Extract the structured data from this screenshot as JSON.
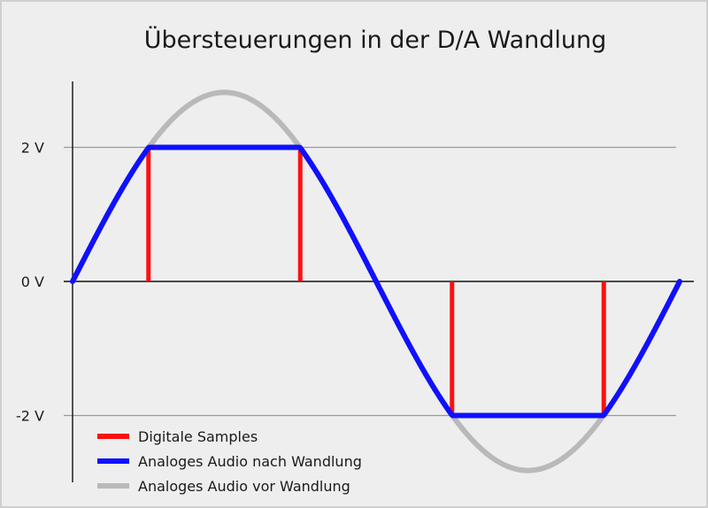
{
  "chart_data": {
    "type": "line",
    "title": "Übersteuerungen in der D/A Wandlung",
    "xlabel": "",
    "ylabel": "",
    "ylim": [
      -3.05,
      3.05
    ],
    "xlim": [
      0,
      360
    ],
    "y_ticks": [
      {
        "value": 2,
        "label": "2 V"
      },
      {
        "value": 0,
        "label": "0 V"
      },
      {
        "value": -2,
        "label": "-2 V"
      }
    ],
    "grid": "horizontal lines at 2 V and -2 V",
    "legend_position": "bottom-left",
    "series": [
      {
        "name": "Analoges Audio vor Wandlung",
        "color": "#b9b9b9",
        "amplitude": 2.82,
        "x": [
          0,
          15,
          30,
          45,
          60,
          75,
          90,
          105,
          120,
          135,
          150,
          165,
          180,
          195,
          210,
          225,
          240,
          255,
          270,
          285,
          300,
          315,
          330,
          345,
          360
        ],
        "y": [
          0,
          0.73,
          1.41,
          1.99,
          2.44,
          2.72,
          2.82,
          2.72,
          2.44,
          1.99,
          1.41,
          0.73,
          0,
          -0.73,
          -1.41,
          -1.99,
          -2.44,
          -2.72,
          -2.82,
          -2.72,
          -2.44,
          -1.99,
          -1.41,
          -0.73,
          0
        ]
      },
      {
        "name": "Analoges Audio nach Wandlung",
        "color": "#1010ff",
        "clip": 2,
        "x": [
          0,
          15,
          30,
          45,
          60,
          75,
          90,
          105,
          120,
          135,
          150,
          165,
          180,
          195,
          210,
          225,
          240,
          255,
          270,
          285,
          300,
          315,
          330,
          345,
          360
        ],
        "y": [
          0,
          0.73,
          1.41,
          1.99,
          2,
          2,
          2,
          2,
          2,
          1.99,
          1.41,
          0.73,
          0,
          -0.73,
          -1.41,
          -1.99,
          -2,
          -2,
          -2,
          -2,
          -2,
          -1.99,
          -1.41,
          -0.73,
          0
        ]
      },
      {
        "name": "Digitale Samples",
        "color": "#ff1010",
        "type": "stem",
        "x": [
          45,
          135,
          225,
          315
        ],
        "y": [
          2,
          2,
          -2,
          -2
        ]
      }
    ],
    "legend": [
      "Digitale Samples",
      "Analoges Audio nach Wandlung",
      "Analoges Audio vor Wandlung"
    ]
  }
}
